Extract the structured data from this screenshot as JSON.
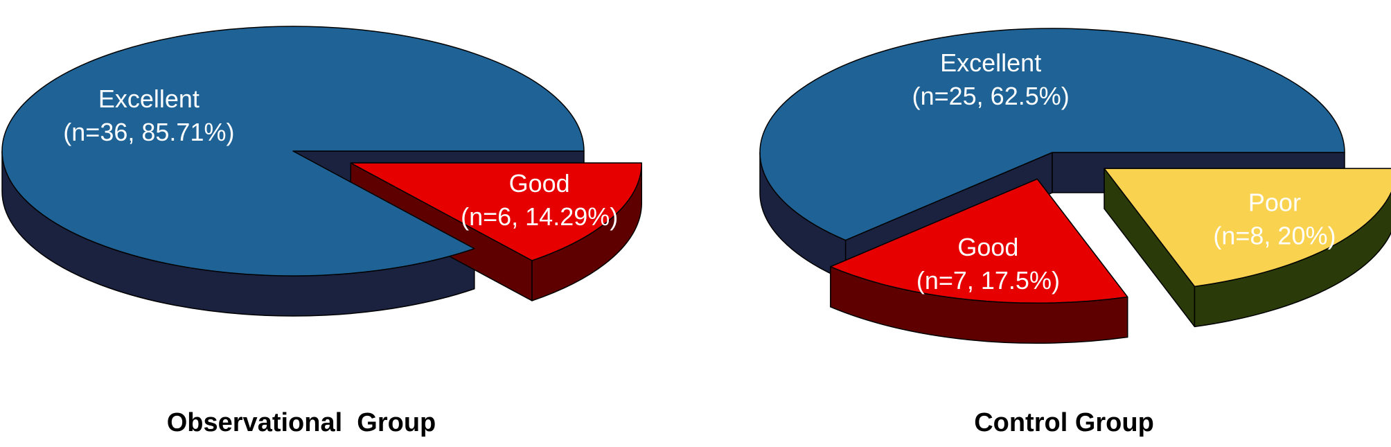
{
  "chart_data": [
    {
      "type": "pie",
      "title": "Observational  Group",
      "categories": [
        "Excellent",
        "Good"
      ],
      "values": [
        85.71,
        14.29
      ],
      "value_labels": [
        "(n=36, 85.71%)",
        "(n=6, 14.29%)"
      ],
      "colors": [
        "#1f6396",
        "#e60000"
      ],
      "side_colors": [
        "#1a2240",
        "#5e0000"
      ]
    },
    {
      "type": "pie",
      "title": "Control Group",
      "categories": [
        "Excellent",
        "Good",
        "Poor"
      ],
      "values": [
        62.5,
        17.5,
        20
      ],
      "value_labels": [
        "(n=25, 62.5%)",
        "(n=7, 17.5%)",
        "(n=8, 20%)"
      ],
      "colors": [
        "#1f6396",
        "#e60000",
        "#f9d250"
      ],
      "side_colors": [
        "#1a2240",
        "#5e0000",
        "#2a3a08"
      ]
    }
  ]
}
